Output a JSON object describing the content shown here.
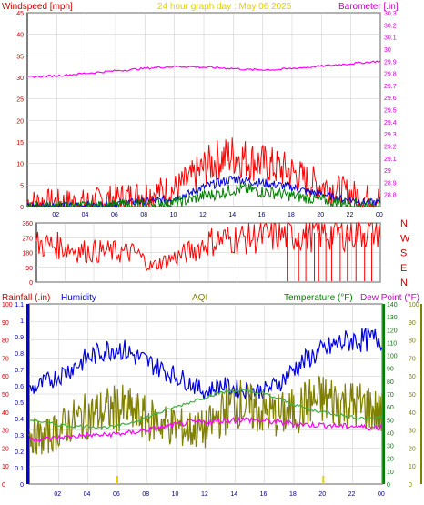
{
  "header": {
    "left_title": "Windspeed [mph]",
    "center_title": "24 hour graph day : May 06 2025",
    "right_title": "Barometer [.in]"
  },
  "colors": {
    "red": "#ff0000",
    "blue": "#0000e0",
    "green": "#008000",
    "magenta": "#ff00ff",
    "olive": "#808000",
    "gold": "#e0d000",
    "lightgreen": "#40b040",
    "grid": "#c8c8c8"
  },
  "x_ticks": [
    "02",
    "04",
    "06",
    "08",
    "10",
    "12",
    "14",
    "16",
    "18",
    "20",
    "22",
    "00"
  ],
  "chart_data": [
    {
      "type": "line",
      "panel": "wind-barometer",
      "title": "Windspeed [mph] / Barometer [.in]",
      "x_hours": [
        0,
        1,
        2,
        3,
        4,
        5,
        6,
        7,
        8,
        9,
        10,
        11,
        12,
        13,
        14,
        15,
        16,
        17,
        18,
        19,
        20,
        21,
        22,
        23,
        24
      ],
      "ylim_left": [
        0,
        45
      ],
      "ylabel_left": "Windspeed [mph]",
      "yticks_left": [
        0,
        5,
        10,
        15,
        20,
        25,
        30,
        35,
        40,
        45
      ],
      "ylim_right": [
        28.7,
        30.3
      ],
      "ylabel_right": "Barometer [.in]",
      "yticks_right": [
        "30.3",
        "30.2",
        "30.1",
        "30",
        "29.9",
        "29.8",
        "29.7",
        "29.6",
        "29.5",
        "29.4",
        "29.3",
        "29.2",
        "29.1",
        "29",
        "28.9",
        "28.8"
      ],
      "series": [
        {
          "name": "Wind gust",
          "axis": "left",
          "color": "red",
          "values": [
            1,
            1,
            1,
            1,
            1,
            1.5,
            2,
            2.5,
            3,
            3.5,
            4,
            6,
            9,
            11,
            12,
            11,
            10,
            9,
            8,
            6,
            5,
            4,
            3,
            2,
            2
          ]
        },
        {
          "name": "Wind speed",
          "axis": "left",
          "color": "blue",
          "values": [
            0.3,
            0.3,
            0.3,
            0.3,
            0.3,
            0.5,
            0.7,
            1,
            1.2,
            1.5,
            2,
            3,
            4.5,
            5.5,
            6.5,
            6,
            5.5,
            5,
            4.5,
            3.5,
            3,
            2,
            1.5,
            1,
            1
          ]
        },
        {
          "name": "Wind average",
          "axis": "left",
          "color": "green",
          "values": [
            0.1,
            0.1,
            0.1,
            0.1,
            0.1,
            0.2,
            0.3,
            0.5,
            0.6,
            0.8,
            1,
            1.5,
            2.5,
            3,
            4,
            4,
            3.5,
            3,
            2.5,
            2,
            1.5,
            1,
            0.8,
            0.5,
            0.5
          ]
        },
        {
          "name": "Barometer",
          "axis": "right",
          "color": "magenta",
          "values": [
            29.77,
            29.775,
            29.78,
            29.79,
            29.8,
            29.81,
            29.82,
            29.83,
            29.84,
            29.85,
            29.855,
            29.855,
            29.85,
            29.845,
            29.84,
            29.83,
            29.83,
            29.83,
            29.84,
            29.85,
            29.86,
            29.87,
            29.88,
            29.89,
            29.9
          ]
        }
      ]
    },
    {
      "type": "line",
      "panel": "wind-direction",
      "x_hours": [
        0,
        1,
        2,
        3,
        4,
        5,
        6,
        7,
        8,
        9,
        10,
        11,
        12,
        13,
        14,
        15,
        16,
        17,
        18,
        19,
        20,
        21,
        22,
        23,
        24
      ],
      "ylim": [
        0,
        360
      ],
      "yticks": [
        0,
        90,
        180,
        270,
        360
      ],
      "right_labels": [
        "N",
        "W",
        "S",
        "E",
        "N"
      ],
      "series": [
        {
          "name": "Wind direction",
          "color": "red",
          "values": [
            230,
            225,
            215,
            190,
            188,
            185,
            180,
            175,
            95,
            130,
            160,
            195,
            245,
            260,
            265,
            270,
            275,
            280,
            285,
            290,
            295,
            300,
            305,
            310,
            320
          ],
          "drops": [
            17.5,
            18.3,
            18.8,
            19.4,
            19.7,
            20.2,
            20.6,
            21.2,
            21.7,
            22.3,
            22.9,
            23.4
          ]
        }
      ]
    },
    {
      "type": "line",
      "panel": "rain-humidity-temp",
      "x_hours": [
        0,
        1,
        2,
        3,
        4,
        5,
        6,
        7,
        8,
        9,
        10,
        11,
        12,
        13,
        14,
        15,
        16,
        17,
        18,
        19,
        20,
        21,
        22,
        23,
        24
      ],
      "labels": {
        "rainfall": "Rainfall (.in)",
        "humidity": "Humidity",
        "aqi": "AQI",
        "temperature": "Temperature (°F)",
        "dewpoint": "Dew Point (°F)"
      },
      "yticks_humidity": [
        0,
        10,
        20,
        30,
        40,
        50,
        60,
        70,
        80,
        90,
        100
      ],
      "ylim_humidity": [
        0,
        100
      ],
      "yticks_rain": [
        "0",
        "0.1",
        "0.2",
        "0.3",
        "0.4",
        "0.5",
        "0.6",
        "0.7",
        "0.8",
        "0.9",
        "1",
        "1.1"
      ],
      "ylim_rain": [
        0,
        1.1
      ],
      "yticks_temp": [
        0,
        10,
        20,
        30,
        40,
        50,
        60,
        70,
        80,
        90,
        100,
        110,
        120,
        130,
        140
      ],
      "ylim_temp": [
        0,
        140
      ],
      "yticks_aqi": [
        0,
        10,
        20,
        30,
        40,
        50,
        60,
        70,
        80,
        90,
        100
      ],
      "ylim_aqi": [
        0,
        100
      ],
      "series": [
        {
          "name": "Humidity",
          "axis": "humidity",
          "color": "blue",
          "values": [
            52,
            56,
            60,
            65,
            70,
            74,
            76,
            72,
            68,
            64,
            60,
            56,
            51,
            55,
            53,
            52,
            52,
            56,
            64,
            70,
            74,
            78,
            80,
            80,
            81
          ]
        },
        {
          "name": "AQI",
          "axis": "aqi",
          "color": "olive",
          "values": [
            28,
            25,
            30,
            35,
            38,
            40,
            42,
            40,
            36,
            34,
            32,
            30,
            30,
            38,
            46,
            42,
            40,
            38,
            40,
            45,
            47,
            46,
            44,
            43,
            38
          ]
        },
        {
          "name": "Temperature",
          "axis": "temp",
          "color": "lightgreen",
          "values": [
            50,
            48,
            46,
            45,
            45,
            44,
            45,
            48,
            52,
            56,
            60,
            64,
            68,
            71,
            73,
            72,
            70,
            66,
            62,
            58,
            56,
            54,
            52,
            51,
            52
          ]
        },
        {
          "name": "Dew Point",
          "axis": "temp",
          "color": "magenta",
          "values": [
            35,
            35,
            36,
            37,
            38,
            38,
            39,
            40,
            42,
            44,
            46,
            48,
            48,
            49,
            50,
            50,
            49,
            48,
            47,
            46,
            46,
            45,
            45,
            44,
            44
          ]
        },
        {
          "name": "Rainfall",
          "axis": "rain",
          "color": "gold",
          "values": [
            0,
            0,
            0,
            0,
            0,
            0,
            0.05,
            0,
            0,
            0,
            0,
            0,
            0,
            0,
            0,
            0,
            0,
            0,
            0,
            0,
            0.05,
            0,
            0,
            0,
            0
          ]
        }
      ]
    }
  ]
}
